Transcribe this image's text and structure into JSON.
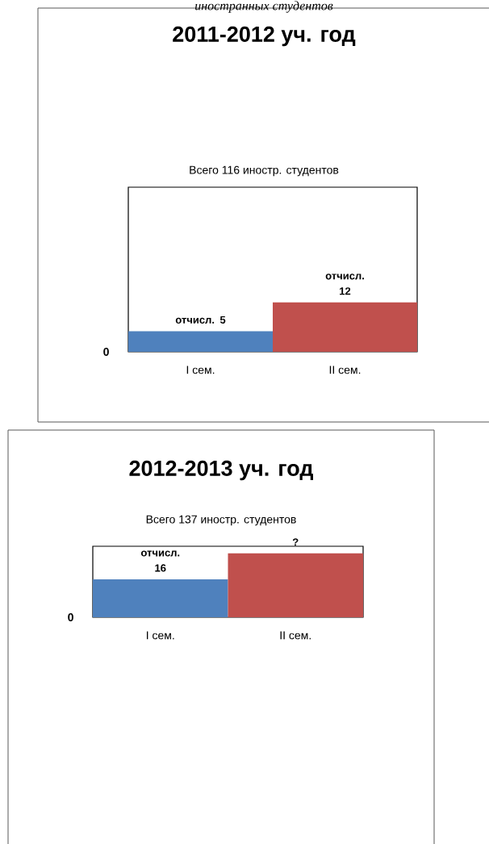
{
  "chart_data": [
    {
      "type": "bar",
      "title": "2011-2012 уч. год",
      "subtitle": "Всего 116 иностр. студентов",
      "annotations": [
        "иностранных студентов",
        "0"
      ],
      "categories": [
        "I сем.",
        "II сем."
      ],
      "values": [
        5,
        12
      ],
      "colors": [
        "#4f81bd",
        "#c0504d"
      ],
      "value_labels": [
        "отчисл. 5",
        "отчисл. 12"
      ],
      "ylim": [
        0,
        40
      ]
    },
    {
      "type": "bar",
      "title": "2012-2013 уч. год",
      "subtitle": "Всего 137 иностр. студентов",
      "annotations": [
        "0"
      ],
      "categories": [
        "I сем.",
        "II сем."
      ],
      "values": [
        16,
        27
      ],
      "colors": [
        "#4f81bd",
        "#c0504d"
      ],
      "value_labels": [
        "отчисл. 16",
        "?"
      ],
      "ylim": [
        0,
        30
      ]
    }
  ]
}
